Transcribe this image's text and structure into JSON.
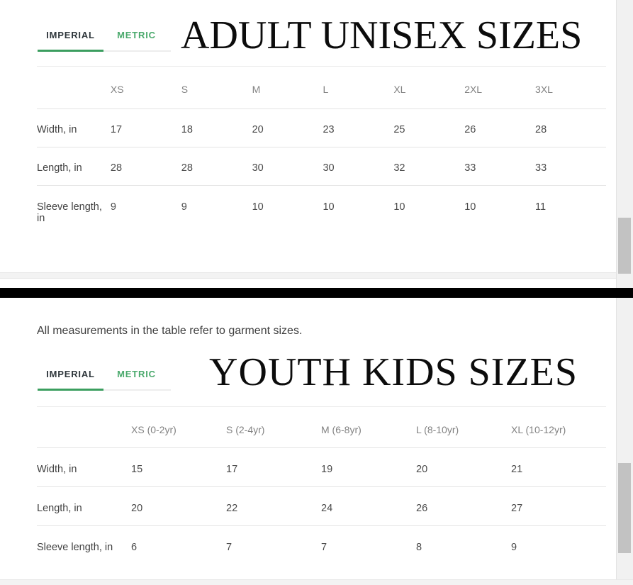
{
  "note": "All measurements in the table refer to garment sizes.",
  "colors": {
    "accent_green_underline": "#3b9e5f",
    "metric_tab_green": "#4aa96c",
    "divider_black": "#000000",
    "scrollbar_thumb": "#c2c2c2",
    "scrollbar_track": "#f1f1f1"
  },
  "sections": [
    {
      "title": "ADULT UNISEX SIZES",
      "tabs": [
        {
          "label": "IMPERIAL",
          "active": true
        },
        {
          "label": "METRIC",
          "active": false
        }
      ],
      "table": {
        "columns": [
          "XS",
          "S",
          "M",
          "L",
          "XL",
          "2XL",
          "3XL"
        ],
        "rows": [
          {
            "label": "Width, in",
            "values": [
              "17",
              "18",
              "20",
              "23",
              "25",
              "26",
              "28"
            ]
          },
          {
            "label": "Length, in",
            "values": [
              "28",
              "28",
              "30",
              "30",
              "32",
              "33",
              "33"
            ]
          },
          {
            "label": "Sleeve length, in",
            "values": [
              "9",
              "9",
              "10",
              "10",
              "10",
              "10",
              "11"
            ]
          }
        ]
      }
    },
    {
      "title": "YOUTH KIDS SIZES",
      "tabs": [
        {
          "label": "IMPERIAL",
          "active": true
        },
        {
          "label": "METRIC",
          "active": false
        }
      ],
      "table": {
        "columns": [
          "XS (0-2yr)",
          "S (2-4yr)",
          "M (6-8yr)",
          "L (8-10yr)",
          "XL (10-12yr)"
        ],
        "rows": [
          {
            "label": "Width, in",
            "values": [
              "15",
              "17",
              "19",
              "20",
              "21"
            ]
          },
          {
            "label": "Length, in",
            "values": [
              "20",
              "22",
              "24",
              "26",
              "27"
            ]
          },
          {
            "label": "Sleeve length, in",
            "values": [
              "6",
              "7",
              "7",
              "8",
              "9"
            ]
          }
        ]
      }
    }
  ]
}
